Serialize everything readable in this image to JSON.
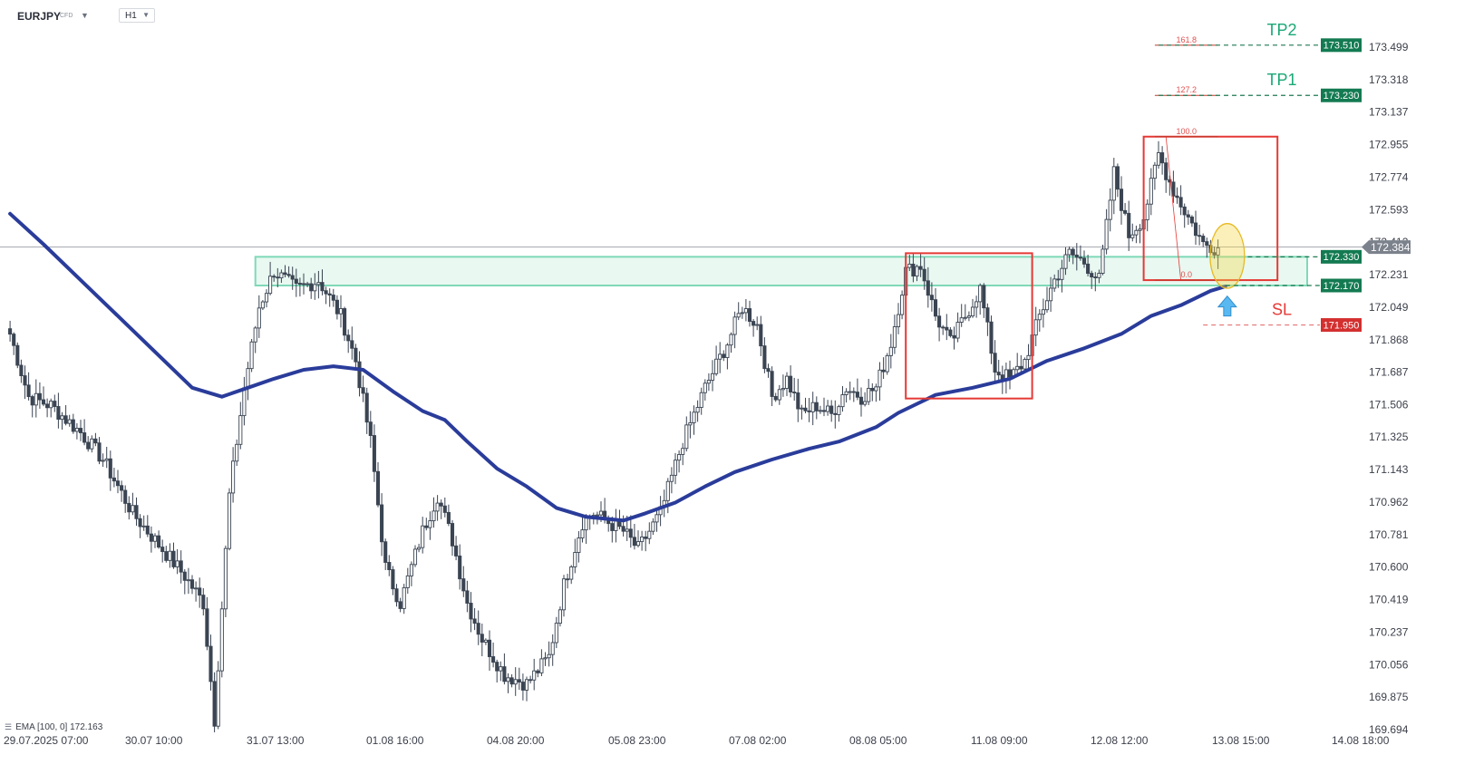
{
  "header": {
    "symbol": "EURJPY",
    "instrument_type": "CFD",
    "timeframe": "H1"
  },
  "indicator": {
    "label": "EMA [100, 0] 172.163",
    "icon": "list-icon"
  },
  "colors": {
    "ema": "#2a3c9a",
    "zone_stroke": "#7fd9b8",
    "zone_fill": "#e9f8f1",
    "box": "#e53935",
    "green_tag": "#137a51",
    "red_tag": "#d32f2f",
    "price_tag": "#7c828c",
    "highlight": "#f5d84a",
    "arrow": "#5ab8f0",
    "tp_text": "#1aa875",
    "sl_text": "#e53935"
  },
  "chart_data": {
    "type": "candlestick",
    "symbol": "EURJPY",
    "timeframe": "H1",
    "ylim": [
      169.6,
      173.62
    ],
    "y_ticks": [
      "173.499",
      "173.318",
      "173.137",
      "172.955",
      "172.774",
      "172.593",
      "172.412",
      "172.231",
      "172.049",
      "171.868",
      "171.687",
      "171.506",
      "171.325",
      "171.143",
      "170.962",
      "170.781",
      "170.600",
      "170.419",
      "170.237",
      "170.056",
      "169.875",
      "169.694"
    ],
    "x_ticks": [
      "29.07.2025 07:00",
      "30.07 10:00",
      "31.07 13:00",
      "01.08 16:00",
      "04.08 20:00",
      "05.08 23:00",
      "07.08 02:00",
      "08.08 05:00",
      "11.08 09:00",
      "12.08 12:00",
      "13.08 15:00",
      "14.08 18:00"
    ],
    "x_range_hours": [
      0,
      384
    ],
    "current_price": 172.384,
    "current_price_label": "172.384",
    "candle_keyframes": [
      {
        "t": 1,
        "p": 171.9
      },
      {
        "t": 6,
        "p": 171.55
      },
      {
        "t": 12,
        "p": 171.5
      },
      {
        "t": 20,
        "p": 171.35
      },
      {
        "t": 26,
        "p": 171.2
      },
      {
        "t": 34,
        "p": 170.9
      },
      {
        "t": 42,
        "p": 170.7
      },
      {
        "t": 48,
        "p": 170.55
      },
      {
        "t": 53,
        "p": 170.4
      },
      {
        "t": 56,
        "p": 169.75
      },
      {
        "t": 60,
        "p": 171.0
      },
      {
        "t": 64,
        "p": 171.6
      },
      {
        "t": 68,
        "p": 172.05
      },
      {
        "t": 72,
        "p": 172.25
      },
      {
        "t": 78,
        "p": 172.15
      },
      {
        "t": 84,
        "p": 172.2
      },
      {
        "t": 90,
        "p": 172.0
      },
      {
        "t": 94,
        "p": 171.75
      },
      {
        "t": 98,
        "p": 171.3
      },
      {
        "t": 102,
        "p": 170.6
      },
      {
        "t": 106,
        "p": 170.4
      },
      {
        "t": 112,
        "p": 170.8
      },
      {
        "t": 116,
        "p": 171.0
      },
      {
        "t": 120,
        "p": 170.75
      },
      {
        "t": 124,
        "p": 170.4
      },
      {
        "t": 128,
        "p": 170.2
      },
      {
        "t": 134,
        "p": 170.0
      },
      {
        "t": 140,
        "p": 169.95
      },
      {
        "t": 146,
        "p": 170.1
      },
      {
        "t": 150,
        "p": 170.5
      },
      {
        "t": 155,
        "p": 170.85
      },
      {
        "t": 158,
        "p": 170.9
      },
      {
        "t": 166,
        "p": 170.8
      },
      {
        "t": 170,
        "p": 170.7
      },
      {
        "t": 176,
        "p": 170.9
      },
      {
        "t": 182,
        "p": 171.3
      },
      {
        "t": 188,
        "p": 171.6
      },
      {
        "t": 194,
        "p": 171.85
      },
      {
        "t": 198,
        "p": 172.05
      },
      {
        "t": 202,
        "p": 171.95
      },
      {
        "t": 206,
        "p": 171.55
      },
      {
        "t": 210,
        "p": 171.65
      },
      {
        "t": 214,
        "p": 171.45
      },
      {
        "t": 218,
        "p": 171.5
      },
      {
        "t": 222,
        "p": 171.45
      },
      {
        "t": 226,
        "p": 171.6
      },
      {
        "t": 230,
        "p": 171.55
      },
      {
        "t": 234,
        "p": 171.6
      },
      {
        "t": 238,
        "p": 171.85
      },
      {
        "t": 242,
        "p": 172.25
      },
      {
        "t": 246,
        "p": 172.28
      },
      {
        "t": 250,
        "p": 172.0
      },
      {
        "t": 254,
        "p": 171.85
      },
      {
        "t": 258,
        "p": 172.0
      },
      {
        "t": 262,
        "p": 172.15
      },
      {
        "t": 266,
        "p": 171.7
      },
      {
        "t": 270,
        "p": 171.65
      },
      {
        "t": 274,
        "p": 171.75
      },
      {
        "t": 278,
        "p": 172.0
      },
      {
        "t": 282,
        "p": 172.2
      },
      {
        "t": 286,
        "p": 172.35
      },
      {
        "t": 290,
        "p": 172.3
      },
      {
        "t": 294,
        "p": 172.2
      },
      {
        "t": 298,
        "p": 172.8
      },
      {
        "t": 302,
        "p": 172.45
      },
      {
        "t": 306,
        "p": 172.55
      },
      {
        "t": 310,
        "p": 172.9
      },
      {
        "t": 314,
        "p": 172.7
      },
      {
        "t": 318,
        "p": 172.55
      },
      {
        "t": 322,
        "p": 172.4
      },
      {
        "t": 326,
        "p": 172.38
      }
    ],
    "series": [
      {
        "name": "EMA (100)",
        "points": [
          {
            "t": 1,
            "p": 172.57
          },
          {
            "t": 10,
            "p": 172.4
          },
          {
            "t": 20,
            "p": 172.2
          },
          {
            "t": 30,
            "p": 172.0
          },
          {
            "t": 40,
            "p": 171.8
          },
          {
            "t": 50,
            "p": 171.6
          },
          {
            "t": 58,
            "p": 171.55
          },
          {
            "t": 65,
            "p": 171.6
          },
          {
            "t": 72,
            "p": 171.65
          },
          {
            "t": 80,
            "p": 171.7
          },
          {
            "t": 88,
            "p": 171.72
          },
          {
            "t": 96,
            "p": 171.7
          },
          {
            "t": 104,
            "p": 171.58
          },
          {
            "t": 112,
            "p": 171.47
          },
          {
            "t": 118,
            "p": 171.42
          },
          {
            "t": 124,
            "p": 171.3
          },
          {
            "t": 132,
            "p": 171.15
          },
          {
            "t": 140,
            "p": 171.05
          },
          {
            "t": 148,
            "p": 170.93
          },
          {
            "t": 156,
            "p": 170.88
          },
          {
            "t": 166,
            "p": 170.86
          },
          {
            "t": 172,
            "p": 170.9
          },
          {
            "t": 180,
            "p": 170.96
          },
          {
            "t": 188,
            "p": 171.05
          },
          {
            "t": 196,
            "p": 171.13
          },
          {
            "t": 206,
            "p": 171.2
          },
          {
            "t": 216,
            "p": 171.26
          },
          {
            "t": 224,
            "p": 171.3
          },
          {
            "t": 234,
            "p": 171.38
          },
          {
            "t": 240,
            "p": 171.46
          },
          {
            "t": 250,
            "p": 171.56
          },
          {
            "t": 260,
            "p": 171.6
          },
          {
            "t": 270,
            "p": 171.65
          },
          {
            "t": 280,
            "p": 171.75
          },
          {
            "t": 290,
            "p": 171.82
          },
          {
            "t": 300,
            "p": 171.9
          },
          {
            "t": 308,
            "p": 172.0
          },
          {
            "t": 316,
            "p": 172.06
          },
          {
            "t": 324,
            "p": 172.14
          },
          {
            "t": 328,
            "p": 172.165
          }
        ]
      }
    ],
    "support_zone": {
      "from_t": 67,
      "to_t": 350,
      "low": 172.17,
      "high": 172.33
    },
    "range_boxes": [
      {
        "from_t": 242,
        "to_t": 276,
        "low": 171.54,
        "high": 172.35
      },
      {
        "from_t": 306,
        "to_t": 342,
        "low": 172.2,
        "high": 173.0
      }
    ],
    "fibonacci": {
      "anchor_high_t": 312,
      "anchor_low_t": 316,
      "from_t": 309,
      "to_t": 326,
      "levels": [
        {
          "label": "161.8",
          "price": 173.51
        },
        {
          "label": "127.2",
          "price": 173.23
        },
        {
          "label": "100.0",
          "price": 173.0
        },
        {
          "label": "0.0",
          "price": 172.2
        }
      ]
    },
    "levels": [
      {
        "label": "173.510",
        "price": 173.51,
        "kind": "tp",
        "tag": "TP2",
        "from_t": 310
      },
      {
        "label": "173.230",
        "price": 173.23,
        "kind": "tp",
        "tag": "TP1",
        "from_t": 310
      },
      {
        "label": "172.330",
        "price": 172.33,
        "kind": "entry",
        "tag": "",
        "from_t": 334
      },
      {
        "label": "172.170",
        "price": 172.17,
        "kind": "entry",
        "tag": "",
        "from_t": 328
      },
      {
        "label": "171.950",
        "price": 171.95,
        "kind": "sl",
        "tag": "SL",
        "from_t": 322
      }
    ],
    "highlight_ellipse": {
      "t": 328.5,
      "low": 172.18,
      "high": 172.49
    },
    "signal_arrow": {
      "t": 328.5,
      "price": 172.0,
      "icon": "up-arrow-icon"
    }
  }
}
